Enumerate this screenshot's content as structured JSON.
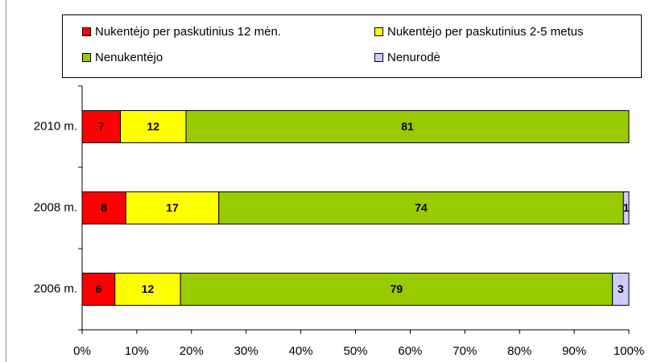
{
  "chart_data": {
    "type": "stacked-bar-horizontal",
    "categories": [
      "2010 m.",
      "2008 m.",
      "2006 m."
    ],
    "series": [
      {
        "name": "Nukentėjo per paskutinius 12 mėn.",
        "color": "#ff0000",
        "values": [
          7,
          8,
          6
        ]
      },
      {
        "name": "Nukentėjo per paskutinius 2-5 metus",
        "color": "#ffff00",
        "values": [
          12,
          17,
          12
        ]
      },
      {
        "name": "Nenukentėjo",
        "color": "#99cc00",
        "values": [
          81,
          74,
          79
        ]
      },
      {
        "name": "Nenurodė",
        "color": "#ccccff",
        "values": [
          null,
          1,
          3
        ]
      }
    ],
    "xlim": [
      0,
      100
    ],
    "xticks": [
      {
        "value": 0,
        "label": "0%"
      },
      {
        "value": 10,
        "label": "10%"
      },
      {
        "value": 20,
        "label": "20%"
      },
      {
        "value": 30,
        "label": "30%"
      },
      {
        "value": 40,
        "label": "40%"
      },
      {
        "value": 50,
        "label": "50%"
      },
      {
        "value": 60,
        "label": "60%"
      },
      {
        "value": 70,
        "label": "70%"
      },
      {
        "value": 80,
        "label": "80%"
      },
      {
        "value": 90,
        "label": "90%"
      },
      {
        "value": 100,
        "label": "100%"
      }
    ],
    "legend": "top"
  }
}
